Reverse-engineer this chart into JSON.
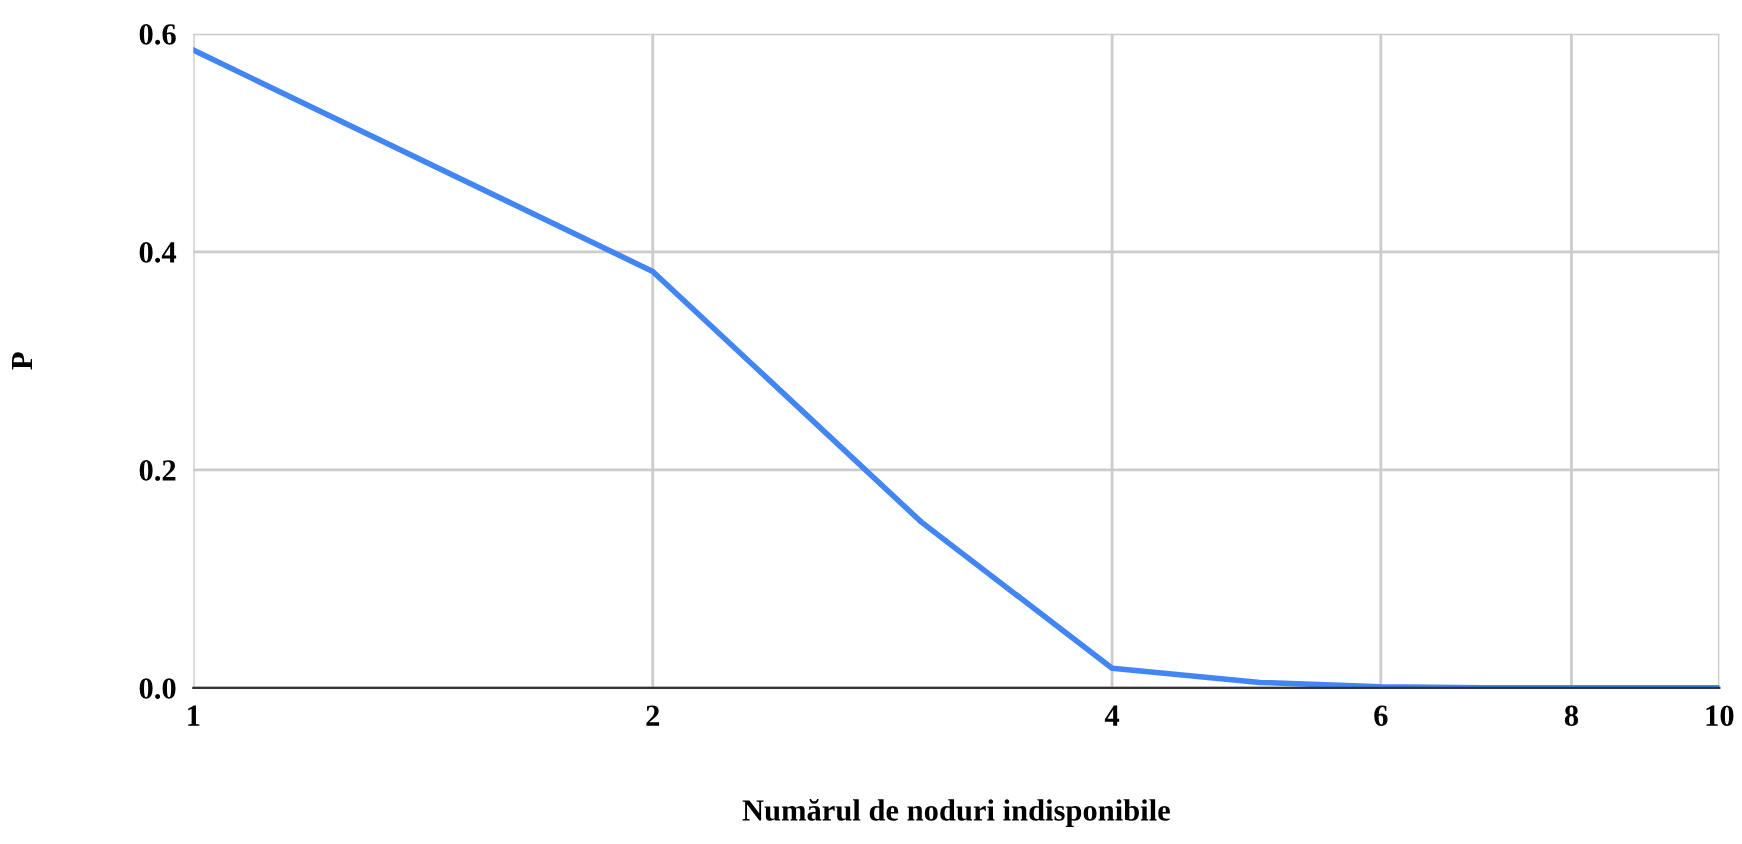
{
  "chart_data": {
    "type": "line",
    "xlabel": "Numărul de noduri indisponibile",
    "ylabel": "P",
    "log": "x",
    "x": [
      1,
      2,
      3,
      4,
      5,
      6,
      7,
      8,
      9,
      10
    ],
    "series": [
      {
        "color": "#4285f4",
        "values": [
          0.585,
          0.382,
          0.152,
          0.018,
          0.005,
          0.001,
          0,
          0,
          0,
          0
        ]
      }
    ],
    "xlim": [
      1,
      10
    ],
    "xticks": [
      1,
      2,
      4,
      6,
      8,
      10
    ],
    "ylim": [
      0,
      0.6
    ],
    "yticks": [
      {
        "value": 0,
        "label": "0.0"
      },
      {
        "value": 0.2,
        "label": "0.2"
      },
      {
        "value": 0.4,
        "label": "0.4"
      },
      {
        "value": 0.6,
        "label": "0.6"
      }
    ],
    "grid": true,
    "legend": false,
    "marker": "none",
    "line_style": "solid"
  }
}
